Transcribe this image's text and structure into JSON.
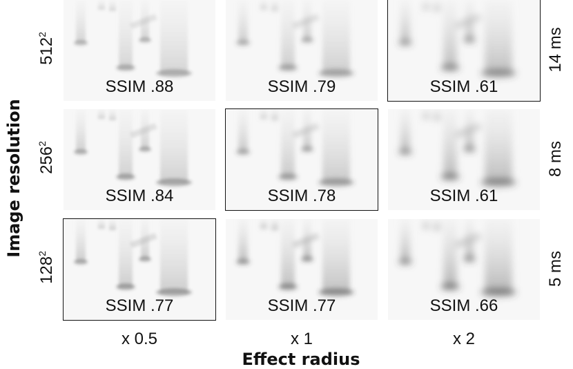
{
  "y_axis_label": "Image resolution",
  "x_axis_label": "Effect radius",
  "resolutions": [
    {
      "base": "512",
      "exp": "2"
    },
    {
      "base": "256",
      "exp": "2"
    },
    {
      "base": "128",
      "exp": "2"
    }
  ],
  "times": [
    "14 ms",
    "8 ms",
    "5 ms"
  ],
  "radii": [
    "x 0.5",
    "x 1",
    "x 2"
  ],
  "grid": [
    [
      {
        "ssim": "SSIM .88",
        "selected": false,
        "darkness": 0.45
      },
      {
        "ssim": "SSIM .79",
        "selected": false,
        "darkness": 0.55
      },
      {
        "ssim": "SSIM .61",
        "selected": true,
        "darkness": 0.75
      }
    ],
    [
      {
        "ssim": "SSIM .84",
        "selected": false,
        "darkness": 0.5
      },
      {
        "ssim": "SSIM .78",
        "selected": true,
        "darkness": 0.6
      },
      {
        "ssim": "SSIM .61",
        "selected": false,
        "darkness": 0.8
      }
    ],
    [
      {
        "ssim": "SSIM .77",
        "selected": true,
        "darkness": 0.55
      },
      {
        "ssim": "SSIM .77",
        "selected": false,
        "darkness": 0.7
      },
      {
        "ssim": "SSIM .66",
        "selected": false,
        "darkness": 0.85
      }
    ]
  ]
}
